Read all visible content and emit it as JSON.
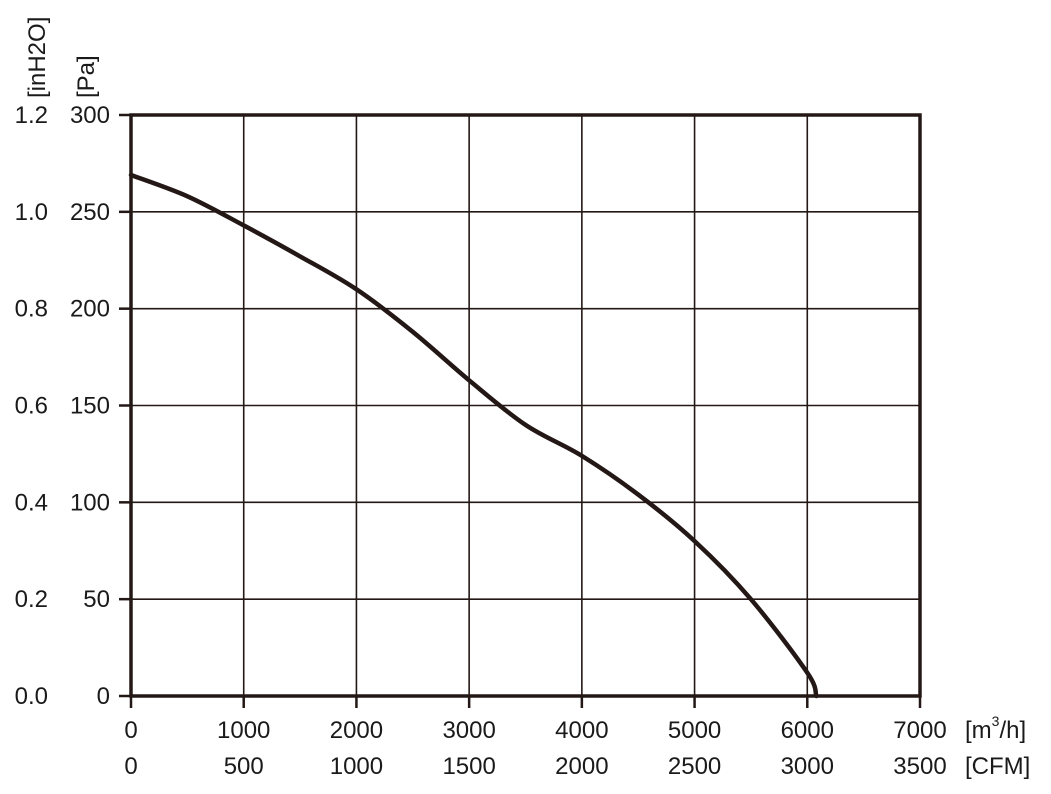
{
  "chart_data": {
    "type": "line",
    "grid": true,
    "axes": {
      "x_primary": {
        "unit_label_pre": "[m",
        "unit_label_sup": "3",
        "unit_label_post": "/h]",
        "range": [
          0,
          7000
        ],
        "ticks": [
          "0",
          "1000",
          "2000",
          "3000",
          "4000",
          "5000",
          "6000",
          "7000"
        ]
      },
      "x_secondary": {
        "unit_label": "[CFM]",
        "range": [
          0,
          3500
        ],
        "ticks": [
          "0",
          "500",
          "1000",
          "1500",
          "2000",
          "2500",
          "3000",
          "3500"
        ]
      },
      "y_primary": {
        "unit_label": "[Pa]",
        "range": [
          0,
          300
        ],
        "ticks": [
          "0",
          "50",
          "100",
          "150",
          "200",
          "250",
          "300"
        ]
      },
      "y_secondary": {
        "unit_label": "[inH2O]",
        "range": [
          0,
          1.2
        ],
        "ticks": [
          "0.0",
          "0.2",
          "0.4",
          "0.6",
          "0.8",
          "1.0",
          "1.2"
        ]
      }
    },
    "series": [
      {
        "x": [
          0,
          500,
          1000,
          1500,
          2000,
          2500,
          3000,
          3500,
          4000,
          4500,
          5000,
          5500,
          6000,
          6080
        ],
        "y": [
          269,
          258,
          243,
          227,
          210,
          188,
          163,
          140,
          124,
          104,
          80,
          50,
          12,
          0
        ]
      }
    ]
  }
}
